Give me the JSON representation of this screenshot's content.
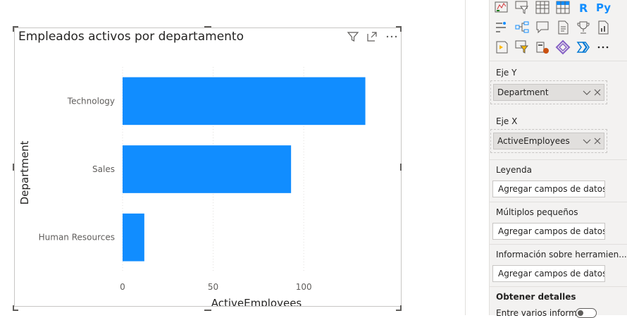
{
  "visual": {
    "title": "Empleados activos por departamento",
    "header_icons": [
      "filter-icon",
      "focus-mode-icon",
      "more-options-icon"
    ]
  },
  "chart_data": {
    "type": "bar",
    "orientation": "horizontal",
    "categories": [
      "Technology",
      "Sales",
      "Human Resources"
    ],
    "values": [
      134,
      93,
      12
    ],
    "xlabel": "ActiveEmployees",
    "ylabel": "Department",
    "xlim": [
      0,
      140
    ],
    "xticks": [
      0,
      50,
      100
    ],
    "bar_color": "#118dff",
    "grid": "vertical-dotted"
  },
  "pane": {
    "viz_icons": [
      "matrix-icon",
      "slicer-icon",
      "table-icon",
      "matrix-grid-icon",
      "r-visual-icon",
      "python-visual-icon",
      "key-influencers-icon",
      "decomposition-tree-icon",
      "qa-icon",
      "narrative-icon",
      "goals-icon",
      "paginated-report-icon",
      "power-apps-icon",
      "power-automate-icon",
      "azure-map-icon",
      "power-apps-diamond-icon",
      "chevron-visual-icon",
      "more-visuals-icon"
    ],
    "r_label": "R",
    "py_label": "Py",
    "more_label": "···",
    "sections": {
      "y_axis": {
        "label": "Eje Y",
        "field": "Department"
      },
      "x_axis": {
        "label": "Eje X",
        "field": "ActiveEmployees"
      },
      "legend": {
        "label": "Leyenda",
        "placeholder": "Agregar campos de datos a..."
      },
      "small_multiples": {
        "label": "Múltiplos pequeños",
        "placeholder": "Agregar campos de datos a..."
      },
      "tooltips": {
        "label": "Información sobre herramien...",
        "placeholder": "Agregar campos de datos a..."
      },
      "drillthrough": {
        "label": "Obtener detalles",
        "cross_report": "Entre varios informes"
      }
    },
    "accent_color": "#118dff"
  }
}
